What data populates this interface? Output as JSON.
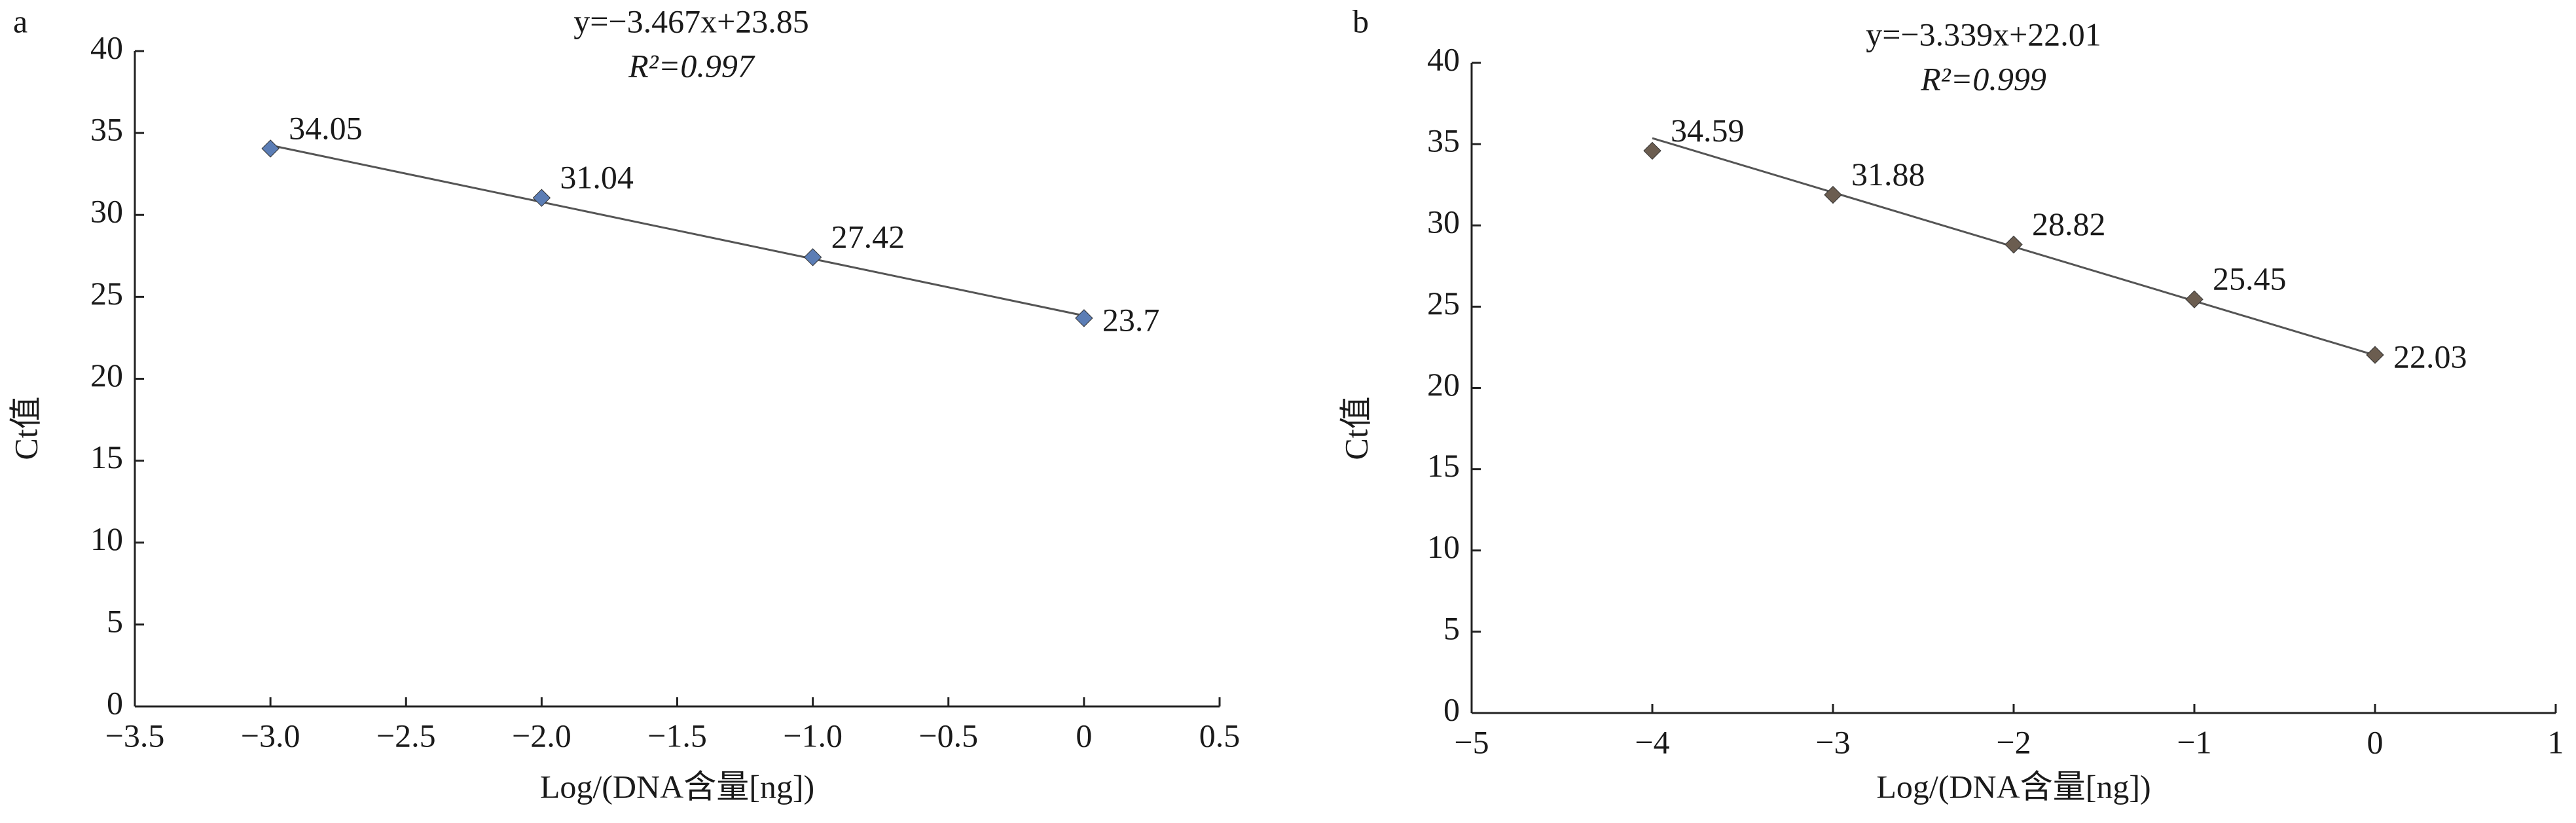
{
  "chart_data": [
    {
      "type": "scatter",
      "panel": "a",
      "equation": "y=−3.467x+23.85",
      "r_squared": "R²=0.997",
      "trendline": {
        "slope": -3.467,
        "intercept": 23.85
      },
      "x_label": "Log/(DNA含量[ng])",
      "y_label": "Ct值",
      "x": [
        -3,
        -2,
        -1,
        0
      ],
      "values": [
        34.05,
        31.04,
        27.42,
        23.7
      ],
      "color": "#5b7db5",
      "xlim": [
        -3.5,
        0.5
      ],
      "xticks": [
        {
          "value": -3.5,
          "label": "−3.5"
        },
        {
          "value": -3.0,
          "label": "−3.0"
        },
        {
          "value": -2.5,
          "label": "−2.5"
        },
        {
          "value": -2.0,
          "label": "−2.0"
        },
        {
          "value": -1.5,
          "label": "−1.5"
        },
        {
          "value": -1.0,
          "label": "−1.0"
        },
        {
          "value": -0.5,
          "label": "−0.5"
        },
        0,
        0.5
      ],
      "ylim": [
        0,
        40
      ],
      "yticks": [
        0,
        5,
        10,
        15,
        20,
        25,
        30,
        35,
        40
      ]
    },
    {
      "type": "scatter",
      "panel": "b",
      "equation": "y=−3.339x+22.01",
      "r_squared": "R²=0.999",
      "trendline": {
        "slope": -3.339,
        "intercept": 22.01
      },
      "x_label": "Log/(DNA含量[ng])",
      "y_label": "Ct值",
      "x": [
        -4,
        -3,
        -2,
        -1,
        0
      ],
      "values": [
        34.59,
        31.88,
        28.82,
        25.45,
        22.03
      ],
      "color": "#6b5d50",
      "xlim": [
        -5,
        1
      ],
      "xticks": [
        {
          "value": -5,
          "label": "−5"
        },
        {
          "value": -4,
          "label": "−4"
        },
        {
          "value": -3,
          "label": "−3"
        },
        {
          "value": -2,
          "label": "−2"
        },
        {
          "value": -1,
          "label": "−1"
        },
        0,
        1
      ],
      "ylim": [
        0,
        40
      ],
      "yticks": [
        0,
        5,
        10,
        15,
        20,
        25,
        30,
        35,
        40
      ]
    }
  ]
}
